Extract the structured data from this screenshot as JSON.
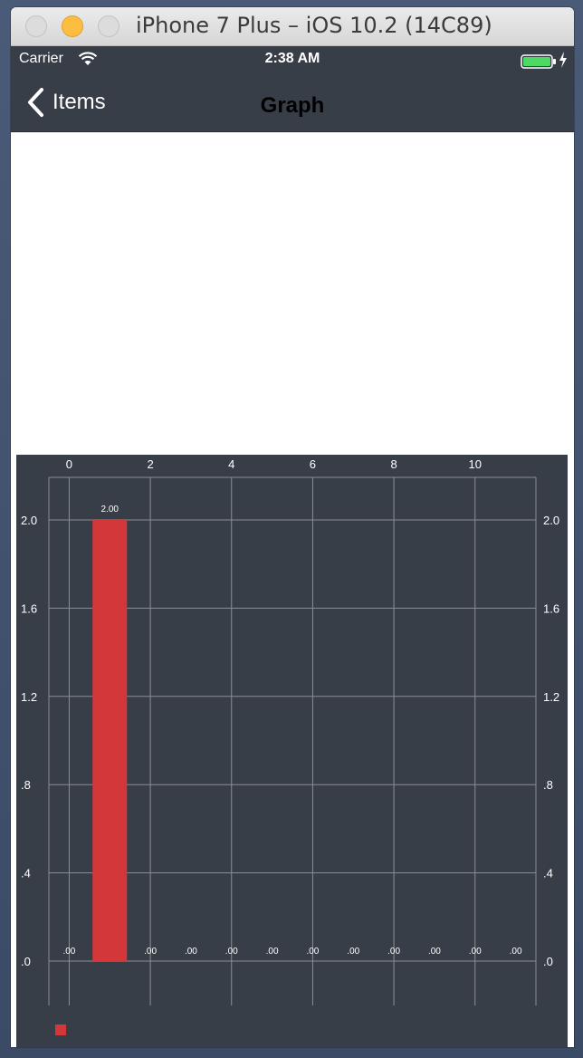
{
  "window": {
    "title": "iPhone 7 Plus – iOS 10.2 (14C89)"
  },
  "status_bar": {
    "carrier": "Carrier",
    "time": "2:38 AM",
    "wifi_icon": "wifi-icon",
    "battery_icon": "battery-charging-icon"
  },
  "nav_bar": {
    "back_label": "Items",
    "title": "Graph",
    "back_icon": "chevron-left-icon"
  },
  "colors": {
    "chart_background": "#383e47",
    "bar": "#d4373a",
    "grid": "#8a8f96",
    "text": "#ffffff",
    "battery_fill": "#4cd964"
  },
  "chart_data": {
    "type": "bar",
    "x_ticks": [
      "0",
      "2",
      "4",
      "6",
      "8",
      "10"
    ],
    "y_ticks_left": [
      ".0",
      ".4",
      ".8",
      "1.2",
      "1.6",
      "2.0"
    ],
    "y_ticks_right": [
      ".0",
      ".4",
      ".8",
      "1.2",
      "1.6",
      "2.0"
    ],
    "x": [
      0,
      1,
      2,
      3,
      4,
      5,
      6,
      7,
      8,
      9,
      10,
      11
    ],
    "values": [
      0,
      2,
      0,
      0,
      0,
      0,
      0,
      0,
      0,
      0,
      0,
      0
    ],
    "value_labels": [
      ".00",
      "2.00",
      ".00",
      ".00",
      ".00",
      ".00",
      ".00",
      ".00",
      ".00",
      ".00",
      ".00",
      ".00"
    ],
    "xlim": [
      -0.5,
      11.5
    ],
    "ylim": [
      0,
      2.2
    ],
    "grid": true,
    "legend": {
      "placement": "bottom-left",
      "entries": [
        {
          "label": "",
          "color": "#d4373a"
        }
      ]
    }
  }
}
